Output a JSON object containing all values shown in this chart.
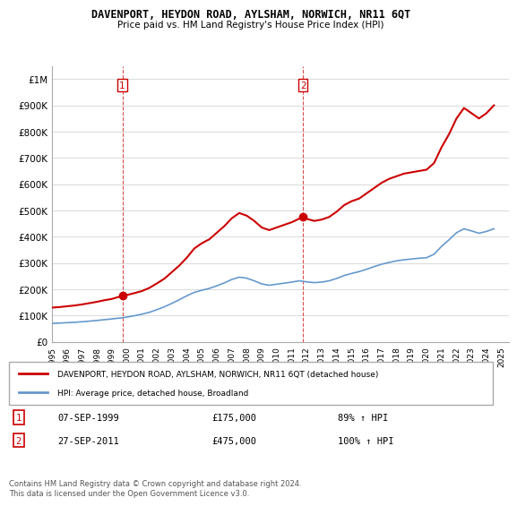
{
  "title": "DAVENPORT, HEYDON ROAD, AYLSHAM, NORWICH, NR11 6QT",
  "subtitle": "Price paid vs. HM Land Registry's House Price Index (HPI)",
  "legend_line1": "DAVENPORT, HEYDON ROAD, AYLSHAM, NORWICH, NR11 6QT (detached house)",
  "legend_line2": "HPI: Average price, detached house, Broadland",
  "annotation1_label": "1",
  "annotation1_date": "07-SEP-1999",
  "annotation1_price": "£175,000",
  "annotation1_hpi": "89% ↑ HPI",
  "annotation2_label": "2",
  "annotation2_date": "27-SEP-2011",
  "annotation2_price": "£475,000",
  "annotation2_hpi": "100% ↑ HPI",
  "footnote": "Contains HM Land Registry data © Crown copyright and database right 2024.\nThis data is licensed under the Open Government Licence v3.0.",
  "red_line_color": "#cc0000",
  "blue_line_color": "#6699cc",
  "vline_color": "#cc0000",
  "background_color": "#ffffff",
  "grid_color": "#dddddd",
  "purchase1_year": 1999.7,
  "purchase2_year": 2011.75,
  "ylim": [
    0,
    1050000
  ],
  "xlim_start": 1995,
  "xlim_end": 2025.5,
  "red_years": [
    1995.0,
    1995.5,
    1996.0,
    1996.5,
    1997.0,
    1997.5,
    1998.0,
    1998.5,
    1999.0,
    1999.7,
    2000.0,
    2000.5,
    2001.0,
    2001.5,
    2002.0,
    2002.5,
    2003.0,
    2003.5,
    2004.0,
    2004.5,
    2005.0,
    2005.5,
    2006.0,
    2006.5,
    2007.0,
    2007.5,
    2008.0,
    2008.5,
    2009.0,
    2009.5,
    2010.0,
    2010.5,
    2011.0,
    2011.75,
    2012.0,
    2012.5,
    2013.0,
    2013.5,
    2014.0,
    2014.5,
    2015.0,
    2015.5,
    2016.0,
    2016.5,
    2017.0,
    2017.5,
    2018.0,
    2018.5,
    2019.0,
    2019.5,
    2020.0,
    2020.5,
    2021.0,
    2021.5,
    2022.0,
    2022.5,
    2023.0,
    2023.5,
    2024.0,
    2024.5
  ],
  "red_values": [
    130000,
    132000,
    135000,
    138000,
    142000,
    147000,
    152000,
    158000,
    163000,
    175000,
    178000,
    185000,
    193000,
    205000,
    222000,
    240000,
    265000,
    290000,
    320000,
    355000,
    375000,
    390000,
    415000,
    440000,
    470000,
    490000,
    480000,
    460000,
    435000,
    425000,
    435000,
    445000,
    455000,
    475000,
    468000,
    460000,
    465000,
    475000,
    495000,
    520000,
    535000,
    545000,
    565000,
    585000,
    605000,
    620000,
    630000,
    640000,
    645000,
    650000,
    655000,
    680000,
    740000,
    790000,
    850000,
    890000,
    870000,
    850000,
    870000,
    900000
  ],
  "blue_years": [
    1995.0,
    1995.5,
    1996.0,
    1996.5,
    1997.0,
    1997.5,
    1998.0,
    1998.5,
    1999.0,
    1999.5,
    2000.0,
    2000.5,
    2001.0,
    2001.5,
    2002.0,
    2002.5,
    2003.0,
    2003.5,
    2004.0,
    2004.5,
    2005.0,
    2005.5,
    2006.0,
    2006.5,
    2007.0,
    2007.5,
    2008.0,
    2008.5,
    2009.0,
    2009.5,
    2010.0,
    2010.5,
    2011.0,
    2011.5,
    2012.0,
    2012.5,
    2013.0,
    2013.5,
    2014.0,
    2014.5,
    2015.0,
    2015.5,
    2016.0,
    2016.5,
    2017.0,
    2017.5,
    2018.0,
    2018.5,
    2019.0,
    2019.5,
    2020.0,
    2020.5,
    2021.0,
    2021.5,
    2022.0,
    2022.5,
    2023.0,
    2023.5,
    2024.0,
    2024.5
  ],
  "blue_values": [
    70000,
    71000,
    72500,
    74000,
    76000,
    78500,
    81000,
    84000,
    87000,
    90000,
    94000,
    99000,
    105000,
    112000,
    122000,
    133000,
    146000,
    160000,
    175000,
    188000,
    196000,
    203000,
    213000,
    224000,
    237000,
    246000,
    242000,
    232000,
    220000,
    215000,
    219000,
    223000,
    227000,
    232000,
    228000,
    225000,
    227000,
    232000,
    241000,
    252000,
    260000,
    267000,
    276000,
    286000,
    295000,
    302000,
    308000,
    312000,
    315000,
    318000,
    320000,
    333000,
    363000,
    388000,
    415000,
    430000,
    422000,
    413000,
    420000,
    430000
  ]
}
